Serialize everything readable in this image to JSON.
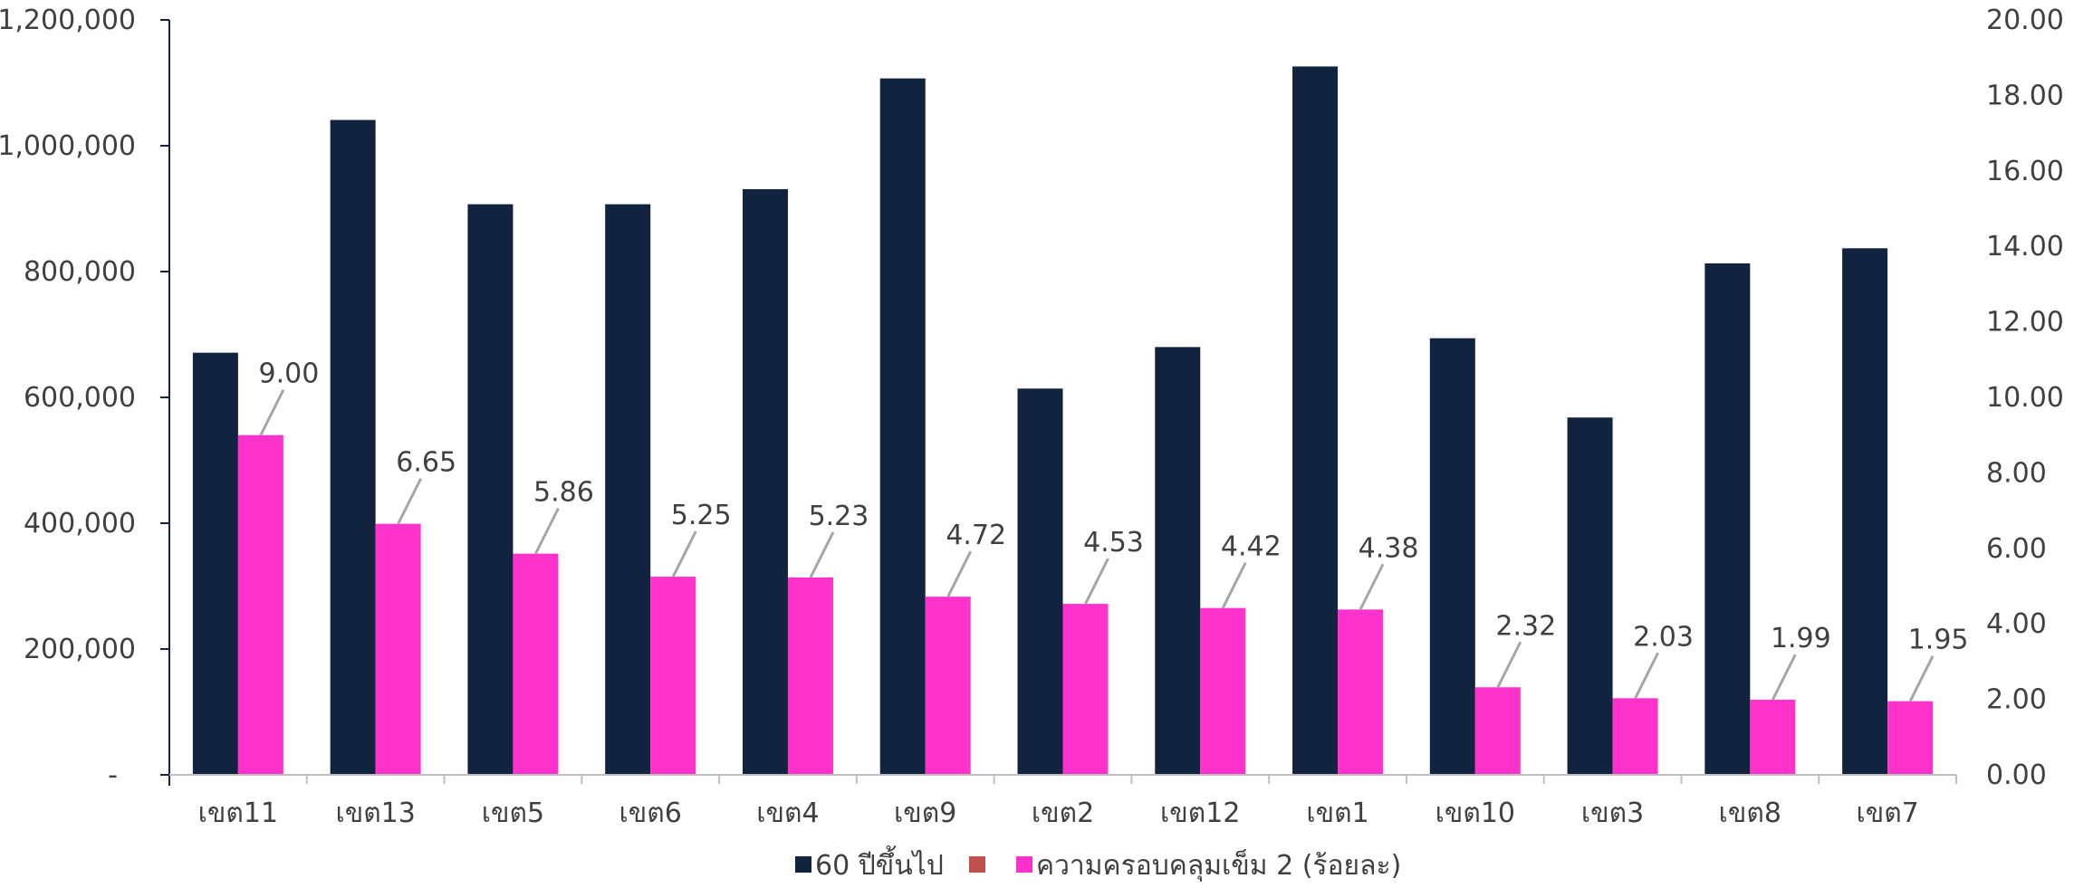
{
  "chart_data": {
    "type": "bar",
    "categories": [
      "เขต11",
      "เขต13",
      "เขต5",
      "เขต6",
      "เขต4",
      "เขต9",
      "เขต2",
      "เขต12",
      "เขต1",
      "เขต10",
      "เขต3",
      "เขต8",
      "เขต7"
    ],
    "series": [
      {
        "name": "60 ปีขึ้นไป",
        "axis": "left",
        "color": "#12233F",
        "values": [
          671000,
          1041000,
          907000,
          907000,
          931000,
          1107000,
          614000,
          680000,
          1126000,
          694000,
          568000,
          813000,
          837000
        ]
      },
      {
        "name": "ความครอบคลุมเข็ม 2 (ร้อยละ)",
        "axis": "right",
        "color": "#FF33CC",
        "values": [
          9.0,
          6.65,
          5.86,
          5.25,
          5.23,
          4.72,
          4.53,
          4.42,
          4.38,
          2.32,
          2.03,
          1.99,
          1.95
        ],
        "labels": [
          "9.00",
          "6.65",
          "5.86",
          "5.25",
          "5.23",
          "4.72",
          "4.53",
          "4.42",
          "4.38",
          "2.32",
          "2.03",
          "1.99",
          "1.95"
        ]
      }
    ],
    "left_axis": {
      "ylim": [
        0,
        1200000
      ],
      "ticks": [
        0,
        200000,
        400000,
        600000,
        800000,
        1000000,
        1200000
      ],
      "tick_labels": [
        "-",
        "200,000",
        "400,000",
        "600,000",
        "800,000",
        "1,000,000",
        "1,200,000"
      ]
    },
    "right_axis": {
      "ylim": [
        0,
        20
      ],
      "ticks": [
        0,
        2,
        4,
        6,
        8,
        10,
        12,
        14,
        16,
        18,
        20
      ],
      "tick_labels": [
        "0.00",
        "2.00",
        "4.00",
        "6.00",
        "8.00",
        "10.00",
        "12.00",
        "14.00",
        "16.00",
        "18.00",
        "20.00"
      ]
    },
    "legend": {
      "placement": "bottom-center",
      "entries": [
        {
          "label": "60 ปีขึ้นไป",
          "color": "#12233F"
        },
        {
          "label": "",
          "color": "#C0504D"
        },
        {
          "label": "ความครอบคลุมเข็ม 2 (ร้อยละ)",
          "color": "#FF33CC"
        }
      ]
    },
    "grid": false
  }
}
